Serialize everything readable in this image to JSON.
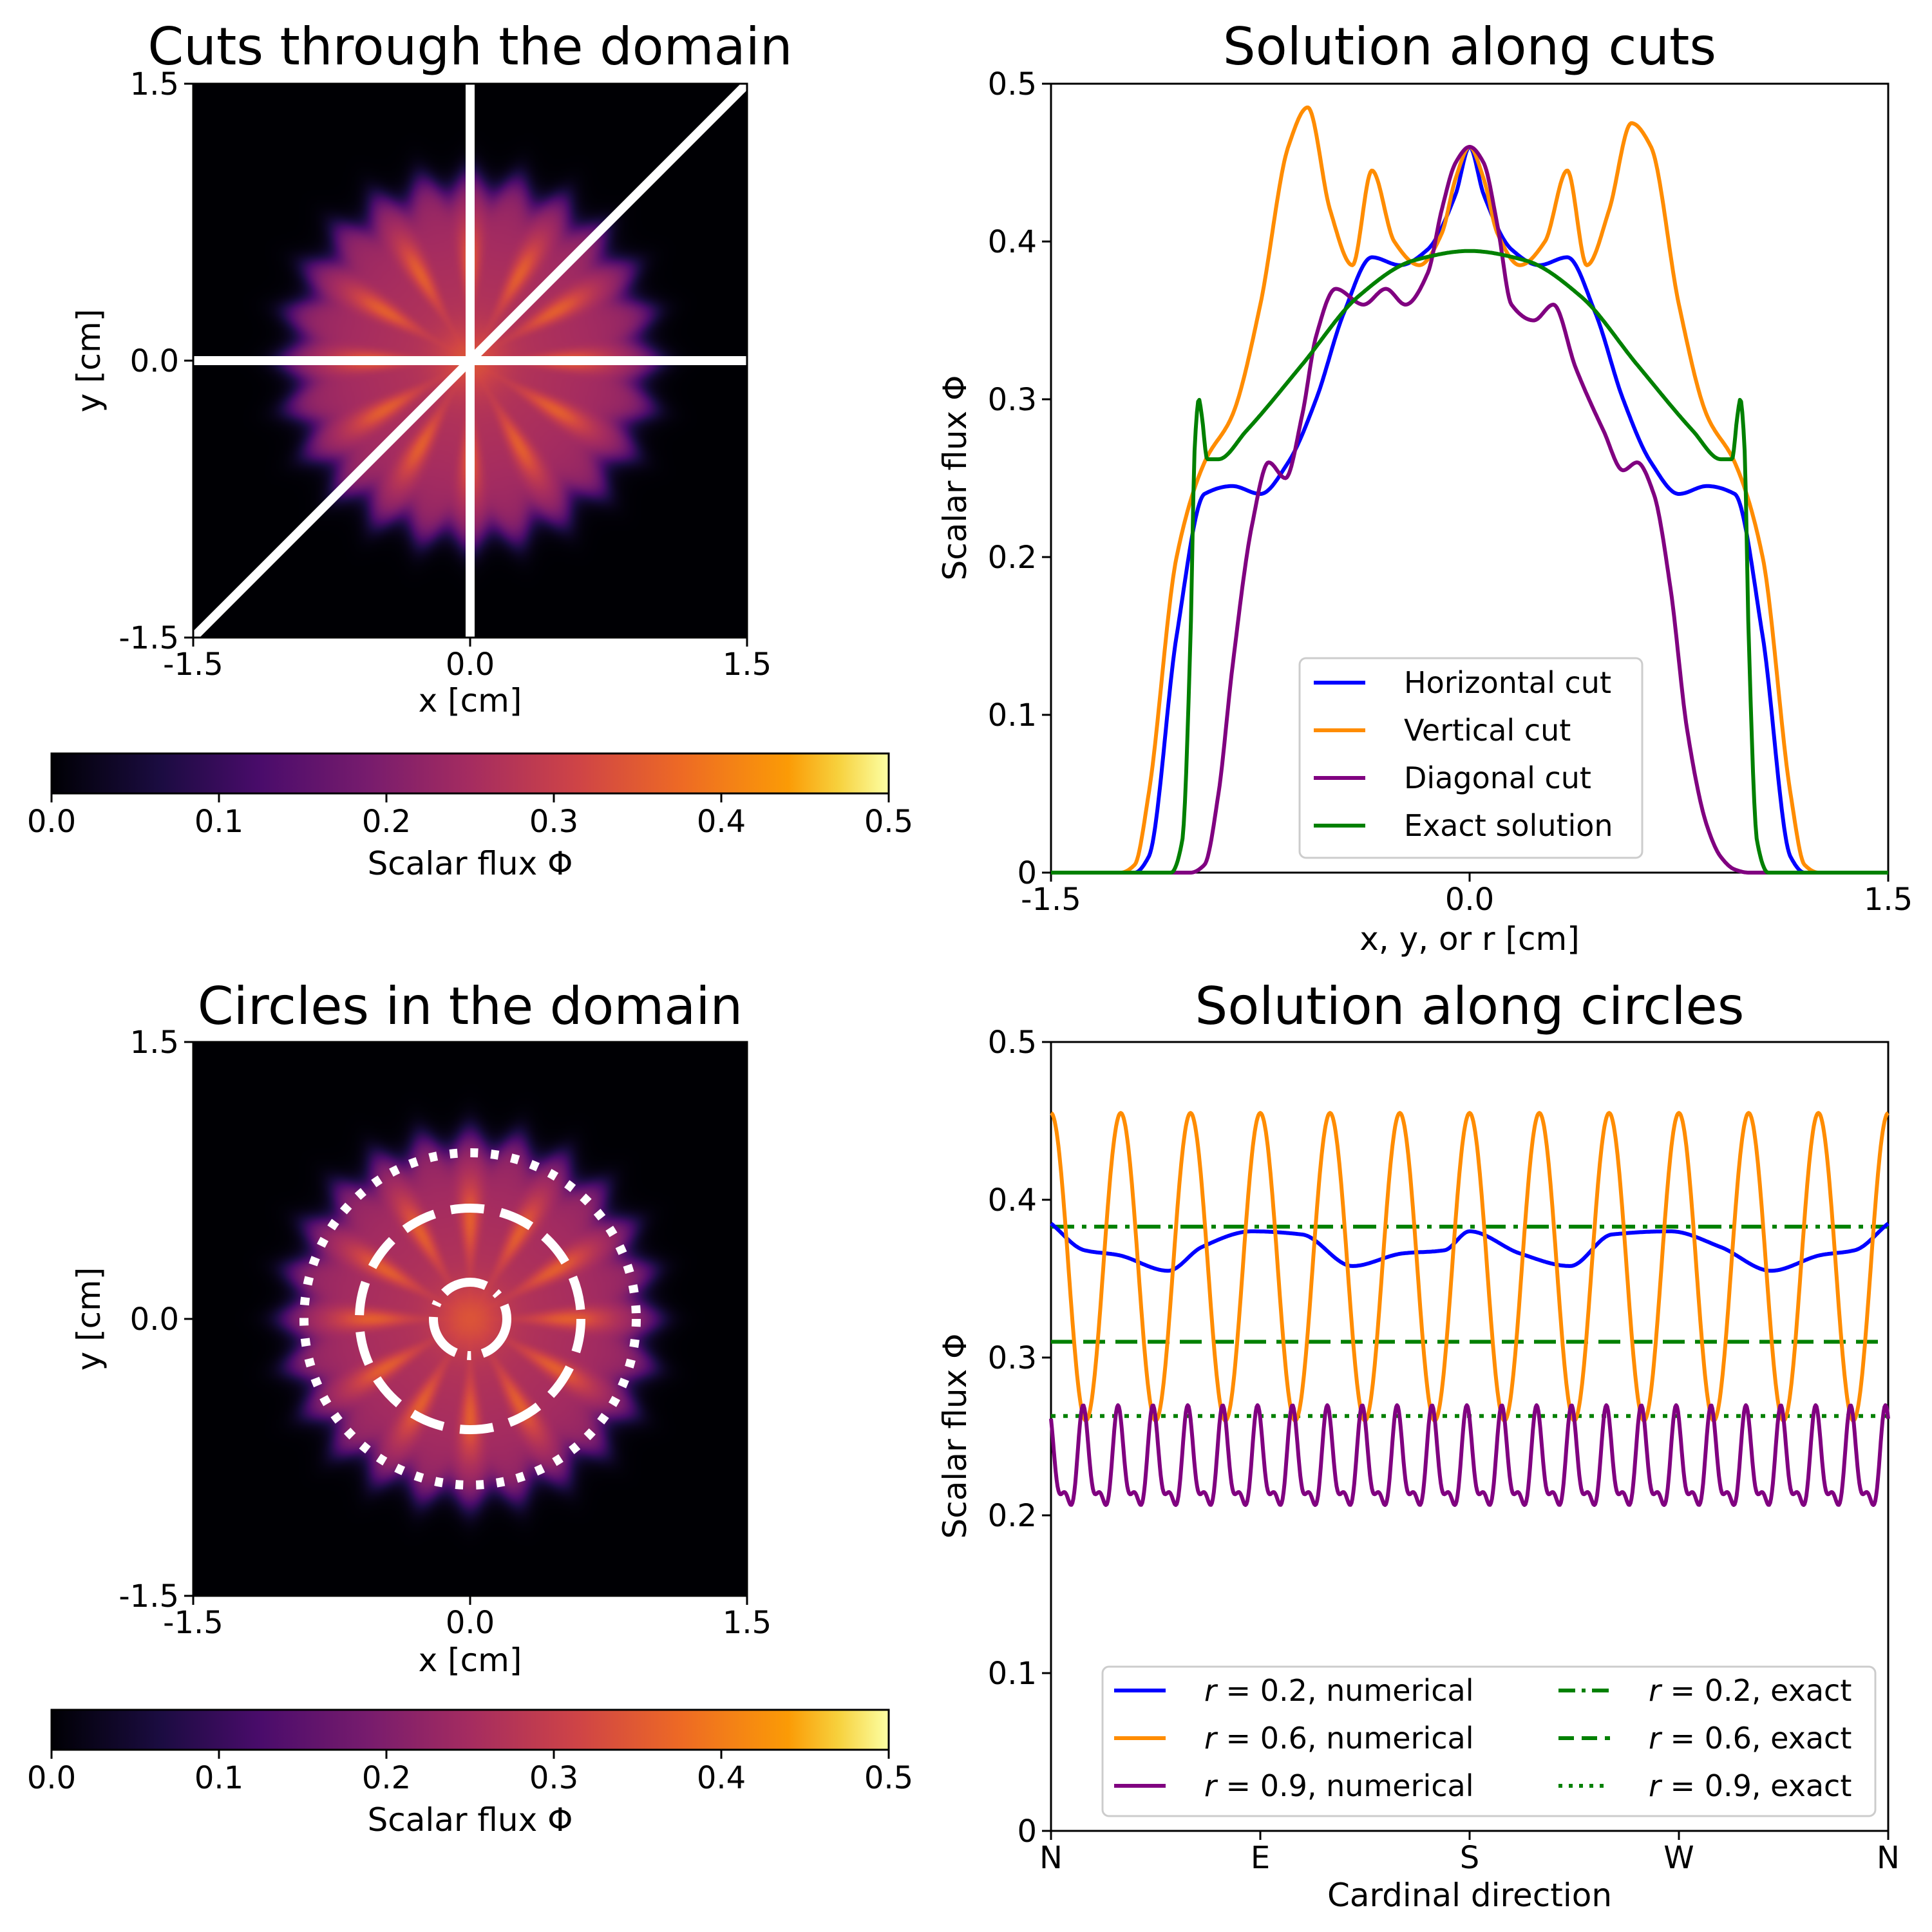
{
  "chart_data": [
    {
      "id": "cuts_map",
      "type": "heatmap",
      "title": "Cuts through the domain",
      "xlabel": "x [cm]",
      "ylabel": "y [cm]",
      "xlim": [
        -1.5,
        1.5
      ],
      "ylim": [
        -1.5,
        1.5
      ],
      "xticks": [
        "-1.5",
        "0.0",
        "1.5"
      ],
      "yticks": [
        "-1.5",
        "0.0",
        "1.5"
      ],
      "colormap": "inferno",
      "field": {
        "source_radius": 1.0,
        "spokes": 12,
        "bumps": 24,
        "peak": 0.46
      },
      "overlays": [
        {
          "kind": "line",
          "label": "Horizontal cut",
          "x": [
            -1.5,
            1.5
          ],
          "y": [
            0,
            0
          ],
          "color": "#ffffff"
        },
        {
          "kind": "line",
          "label": "Vertical cut",
          "x": [
            0,
            0
          ],
          "y": [
            -1.5,
            1.5
          ],
          "color": "#ffffff"
        },
        {
          "kind": "line",
          "label": "Diagonal cut",
          "x": [
            -1.5,
            1.5
          ],
          "y": [
            -1.5,
            1.5
          ],
          "color": "#ffffff"
        }
      ],
      "colorbar": {
        "label": "Scalar flux Φ",
        "range": [
          0.0,
          0.5
        ],
        "ticks": [
          "0.0",
          "0.1",
          "0.2",
          "0.3",
          "0.4",
          "0.5"
        ]
      }
    },
    {
      "id": "cuts_plot",
      "type": "line",
      "title": "Solution along cuts",
      "xlabel": "x, y, or r [cm]",
      "ylabel": "Scalar flux Φ",
      "xlim": [
        -1.5,
        1.5
      ],
      "ylim": [
        0,
        0.5
      ],
      "xticks": [
        "-1.5",
        "0.0",
        "1.5"
      ],
      "yticks": [
        "0",
        "0.1",
        "0.2",
        "0.3",
        "0.4",
        "0.5"
      ],
      "legend_position": "lower center",
      "series": [
        {
          "name": "Horizontal cut",
          "color": "#0000ff",
          "style": "solid",
          "x": [
            -1.5,
            -1.2,
            -1.15,
            -1.05,
            -0.95,
            -0.85,
            -0.75,
            -0.65,
            -0.55,
            -0.45,
            -0.35,
            -0.25,
            -0.15,
            -0.05,
            0,
            0.05,
            0.15,
            0.25,
            0.35,
            0.45,
            0.55,
            0.65,
            0.75,
            0.85,
            0.95,
            1.05,
            1.15,
            1.2,
            1.5
          ],
          "y": [
            0,
            0,
            0.01,
            0.15,
            0.24,
            0.245,
            0.24,
            0.26,
            0.3,
            0.355,
            0.39,
            0.385,
            0.395,
            0.43,
            0.46,
            0.43,
            0.395,
            0.385,
            0.39,
            0.355,
            0.3,
            0.26,
            0.24,
            0.245,
            0.24,
            0.15,
            0.01,
            0,
            0
          ]
        },
        {
          "name": "Vertical cut",
          "color": "#ff8c00",
          "style": "solid",
          "x": [
            -1.5,
            -1.25,
            -1.2,
            -1.15,
            -1.05,
            -0.95,
            -0.85,
            -0.75,
            -0.65,
            -0.58,
            -0.5,
            -0.42,
            -0.35,
            -0.27,
            -0.18,
            -0.1,
            -0.05,
            0,
            0.05,
            0.1,
            0.18,
            0.27,
            0.35,
            0.42,
            0.5,
            0.58,
            0.65,
            0.75,
            0.85,
            0.95,
            1.05,
            1.15,
            1.2,
            1.25,
            1.5
          ],
          "y": [
            0,
            0,
            0.005,
            0.05,
            0.2,
            0.26,
            0.29,
            0.36,
            0.46,
            0.485,
            0.42,
            0.385,
            0.445,
            0.4,
            0.385,
            0.405,
            0.44,
            0.46,
            0.44,
            0.405,
            0.385,
            0.4,
            0.445,
            0.385,
            0.42,
            0.475,
            0.46,
            0.36,
            0.29,
            0.26,
            0.2,
            0.05,
            0.005,
            0,
            0
          ]
        },
        {
          "name": "Diagonal cut",
          "color": "#800080",
          "style": "solid",
          "x": [
            -1.5,
            -1.0,
            -0.95,
            -0.9,
            -0.85,
            -0.78,
            -0.72,
            -0.66,
            -0.6,
            -0.55,
            -0.48,
            -0.38,
            -0.3,
            -0.23,
            -0.15,
            -0.1,
            -0.05,
            0,
            0.05,
            0.1,
            0.15,
            0.23,
            0.3,
            0.38,
            0.48,
            0.55,
            0.6,
            0.66,
            0.72,
            0.78,
            0.85,
            0.9,
            0.95,
            1.0,
            1.5
          ],
          "y": [
            0,
            0,
            0.005,
            0.05,
            0.13,
            0.22,
            0.26,
            0.25,
            0.29,
            0.34,
            0.37,
            0.36,
            0.37,
            0.36,
            0.38,
            0.42,
            0.45,
            0.46,
            0.45,
            0.41,
            0.36,
            0.35,
            0.36,
            0.32,
            0.28,
            0.255,
            0.26,
            0.24,
            0.18,
            0.09,
            0.03,
            0.01,
            0.002,
            0,
            0
          ]
        },
        {
          "name": "Exact solution",
          "color": "#008000",
          "style": "solid",
          "x": [
            -1.5,
            -1.07,
            -1.03,
            -1.0,
            -0.985,
            -0.97,
            -0.96,
            -0.94,
            -0.9,
            -0.8,
            -0.6,
            -0.4,
            -0.2,
            0,
            0.2,
            0.4,
            0.6,
            0.8,
            0.9,
            0.94,
            0.96,
            0.97,
            0.985,
            1.0,
            1.03,
            1.07,
            1.5
          ],
          "y": [
            0,
            0,
            0.02,
            0.15,
            0.27,
            0.3,
            0.29,
            0.262,
            0.262,
            0.28,
            0.322,
            0.365,
            0.388,
            0.394,
            0.388,
            0.365,
            0.322,
            0.28,
            0.262,
            0.262,
            0.29,
            0.3,
            0.27,
            0.15,
            0.02,
            0,
            0
          ]
        }
      ]
    },
    {
      "id": "circles_map",
      "type": "heatmap",
      "title": "Circles in the domain",
      "xlabel": "x [cm]",
      "ylabel": "y [cm]",
      "xlim": [
        -1.5,
        1.5
      ],
      "ylim": [
        -1.5,
        1.5
      ],
      "xticks": [
        "-1.5",
        "0.0",
        "1.5"
      ],
      "yticks": [
        "-1.5",
        "0.0",
        "1.5"
      ],
      "colormap": "inferno",
      "field": {
        "source_radius": 1.0,
        "spokes": 12,
        "bumps": 24,
        "peak": 0.46
      },
      "overlays": [
        {
          "kind": "circle",
          "r": 0.2,
          "style": "dashdot",
          "color": "#ffffff"
        },
        {
          "kind": "circle",
          "r": 0.6,
          "style": "dashed",
          "color": "#ffffff"
        },
        {
          "kind": "circle",
          "r": 0.9,
          "style": "dotted",
          "color": "#ffffff"
        }
      ],
      "colorbar": {
        "label": "Scalar flux Φ",
        "range": [
          0.0,
          0.5
        ],
        "ticks": [
          "0.0",
          "0.1",
          "0.2",
          "0.3",
          "0.4",
          "0.5"
        ]
      }
    },
    {
      "id": "circles_plot",
      "type": "line",
      "title": "Solution along circles",
      "xlabel": "Cardinal direction",
      "ylabel": "Scalar flux Φ",
      "xlim": [
        0,
        1
      ],
      "ylim": [
        0,
        0.5
      ],
      "xticks": [
        "N",
        "E",
        "S",
        "W",
        "N"
      ],
      "yticks": [
        "0",
        "0.1",
        "0.2",
        "0.3",
        "0.4",
        "0.5"
      ],
      "legend_position": "lower center",
      "legend_columns": 2,
      "series": [
        {
          "name": "r = 0.2, numerical",
          "r_label": "0.2",
          "kind_label": "numerical",
          "color": "#0000ff",
          "style": "solid",
          "x": [
            0,
            0.04,
            0.08,
            0.14,
            0.18,
            0.24,
            0.3,
            0.36,
            0.42,
            0.47,
            0.5,
            0.56,
            0.62,
            0.67,
            0.74,
            0.8,
            0.86,
            0.92,
            0.96,
            1.0
          ],
          "y": [
            0.385,
            0.368,
            0.365,
            0.355,
            0.37,
            0.38,
            0.378,
            0.358,
            0.366,
            0.368,
            0.38,
            0.366,
            0.358,
            0.378,
            0.38,
            0.37,
            0.355,
            0.365,
            0.368,
            0.385
          ]
        },
        {
          "name": "r = 0.6, numerical",
          "r_label": "0.6",
          "kind_label": "numerical",
          "color": "#ff8c00",
          "style": "solid",
          "oscillation": {
            "cycles": 12,
            "min": 0.26,
            "max": 0.455
          }
        },
        {
          "name": "r = 0.9, numerical",
          "r_label": "0.9",
          "kind_label": "numerical",
          "color": "#800080",
          "style": "solid",
          "oscillation": {
            "cycles": 24,
            "min": 0.19,
            "max": 0.27
          }
        },
        {
          "name": "r = 0.2, exact",
          "r_label": "0.2",
          "kind_label": "exact",
          "color": "#008000",
          "style": "dashdot",
          "x": [
            0,
            1
          ],
          "y": [
            0.383,
            0.383
          ]
        },
        {
          "name": "r = 0.6, exact",
          "r_label": "0.6",
          "kind_label": "exact",
          "color": "#008000",
          "style": "dashed",
          "x": [
            0,
            1
          ],
          "y": [
            0.31,
            0.31
          ]
        },
        {
          "name": "r = 0.9, exact",
          "r_label": "0.9",
          "kind_label": "exact",
          "color": "#008000",
          "style": "dotted",
          "x": [
            0,
            1
          ],
          "y": [
            0.263,
            0.263
          ]
        }
      ]
    }
  ]
}
